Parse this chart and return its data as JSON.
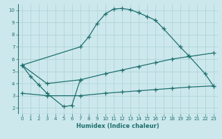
{
  "xlabel": "Humidex (Indice chaleur)",
  "xlim": [
    -0.5,
    23.5
  ],
  "ylim": [
    1.5,
    10.5
  ],
  "xticks": [
    0,
    1,
    2,
    3,
    4,
    5,
    6,
    7,
    8,
    9,
    10,
    11,
    12,
    13,
    14,
    15,
    16,
    17,
    18,
    19,
    20,
    21,
    22,
    23
  ],
  "yticks": [
    2,
    3,
    4,
    5,
    6,
    7,
    8,
    9,
    10
  ],
  "bg_color": "#cce8ec",
  "line_color": "#1e6e6e",
  "grid_color": "#aad0d5",
  "series": [
    {
      "x": [
        0,
        1,
        2,
        3,
        5,
        6,
        7
      ],
      "y": [
        5.5,
        4.6,
        3.9,
        3.2,
        2.1,
        2.2,
        4.3
      ]
    },
    {
      "x": [
        0,
        7,
        8,
        9,
        10,
        11,
        12,
        13,
        14,
        15,
        16,
        17,
        19,
        20,
        22,
        23
      ],
      "y": [
        5.5,
        7.0,
        7.8,
        8.9,
        9.7,
        10.1,
        10.15,
        10.05,
        9.8,
        9.5,
        9.2,
        8.5,
        7.0,
        6.3,
        4.8,
        3.8
      ]
    },
    {
      "x": [
        0,
        3,
        7,
        10,
        12,
        14,
        16,
        18,
        20,
        23
      ],
      "y": [
        5.5,
        4.0,
        4.3,
        4.8,
        5.1,
        5.4,
        5.7,
        6.0,
        6.2,
        6.5
      ]
    },
    {
      "x": [
        0,
        3,
        7,
        10,
        12,
        14,
        16,
        18,
        20,
        23
      ],
      "y": [
        3.2,
        3.0,
        3.0,
        3.2,
        3.3,
        3.4,
        3.5,
        3.6,
        3.7,
        3.8
      ]
    }
  ]
}
